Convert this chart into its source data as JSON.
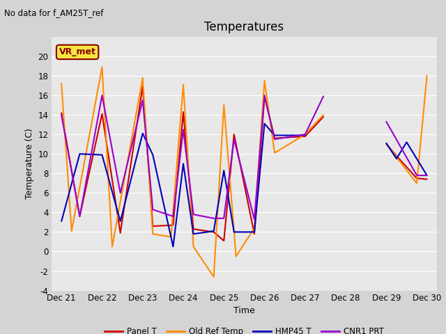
{
  "title": "Temperatures",
  "xlabel": "Time",
  "ylabel": "Temperature (C)",
  "note": "No data for f_AM25T_ref",
  "legend_label": "VR_met",
  "ylim": [
    -4,
    22
  ],
  "xlim": [
    20.75,
    30.25
  ],
  "fig_bg": "#d4d4d4",
  "plot_bg": "#e8e8e8",
  "series": {
    "Panel T": {
      "color": "#cc0000",
      "segments": [
        {
          "x": [
            21,
            21.45,
            22,
            22.45,
            23,
            23.25,
            23.75,
            24,
            24.25,
            24.75,
            25,
            25.25,
            25.75,
            26,
            26.25,
            27,
            27.45
          ],
          "y": [
            14.2,
            3.6,
            14.1,
            1.9,
            16.9,
            2.6,
            2.7,
            14.3,
            2.3,
            2.0,
            1.1,
            12.0,
            1.8,
            15.9,
            11.6,
            11.8,
            13.8
          ]
        },
        {
          "x": [
            29,
            29.25,
            29.75,
            30
          ],
          "y": [
            11.0,
            9.8,
            7.5,
            7.4
          ]
        }
      ]
    },
    "Old Ref Temp": {
      "color": "#ff8c00",
      "segments": [
        {
          "x": [
            21,
            21.25,
            22,
            22.25,
            23,
            23.25,
            23.7,
            24,
            24.25,
            24.75,
            25,
            25.3,
            25.75,
            26,
            26.25,
            27,
            27.45
          ],
          "y": [
            17.2,
            2.1,
            18.9,
            0.5,
            17.8,
            1.8,
            1.5,
            17.1,
            0.5,
            -2.6,
            15.0,
            -0.5,
            2.4,
            17.5,
            10.1,
            12.0,
            14.0
          ]
        },
        {
          "x": [
            29,
            29.75,
            30
          ],
          "y": [
            11.0,
            7.0,
            18.0
          ]
        }
      ]
    },
    "HMP45 T": {
      "color": "#0000bb",
      "segments": [
        {
          "x": [
            21,
            21.45,
            22,
            22.45,
            23,
            23.25,
            23.75,
            24,
            24.25,
            24.75,
            25,
            25.25,
            25.75,
            26,
            26.25,
            27
          ],
          "y": [
            3.1,
            10.0,
            9.9,
            3.1,
            12.1,
            9.9,
            0.5,
            9.0,
            1.8,
            2.1,
            8.3,
            2.0,
            2.0,
            13.1,
            11.9,
            11.9
          ]
        },
        {
          "x": [
            29,
            29.25,
            29.5,
            30
          ],
          "y": [
            11.1,
            9.5,
            11.2,
            7.8
          ]
        }
      ]
    },
    "CNR1 PRT": {
      "color": "#9900cc",
      "segments": [
        {
          "x": [
            21,
            21.45,
            22,
            22.45,
            23,
            23.25,
            23.75,
            24,
            24.25,
            24.75,
            25,
            25.25,
            25.75,
            26,
            26.25,
            27,
            27.45
          ],
          "y": [
            14.0,
            3.6,
            16.0,
            6.0,
            15.5,
            4.3,
            3.6,
            12.5,
            3.8,
            3.4,
            3.4,
            11.5,
            3.3,
            16.0,
            11.5,
            12.0,
            15.9
          ]
        },
        {
          "x": [
            29,
            29.75,
            30
          ],
          "y": [
            13.3,
            7.8,
            7.8
          ]
        }
      ]
    }
  },
  "xticks": [
    21,
    22,
    23,
    24,
    25,
    26,
    27,
    28,
    29,
    30
  ],
  "xtick_labels": [
    "Dec 21",
    "Dec 22",
    "Dec 23",
    "Dec 24",
    "Dec 25",
    "Dec 26",
    "Dec 27",
    "Dec 28",
    "Dec 29",
    "Dec 30"
  ],
  "yticks": [
    -4,
    -2,
    0,
    2,
    4,
    6,
    8,
    10,
    12,
    14,
    16,
    18,
    20
  ],
  "legend_entries": [
    {
      "label": "Panel T",
      "color": "#cc0000"
    },
    {
      "label": "Old Ref Temp",
      "color": "#ff8c00"
    },
    {
      "label": "HMP45 T",
      "color": "#0000bb"
    },
    {
      "label": "CNR1 PRT",
      "color": "#9900cc"
    }
  ]
}
